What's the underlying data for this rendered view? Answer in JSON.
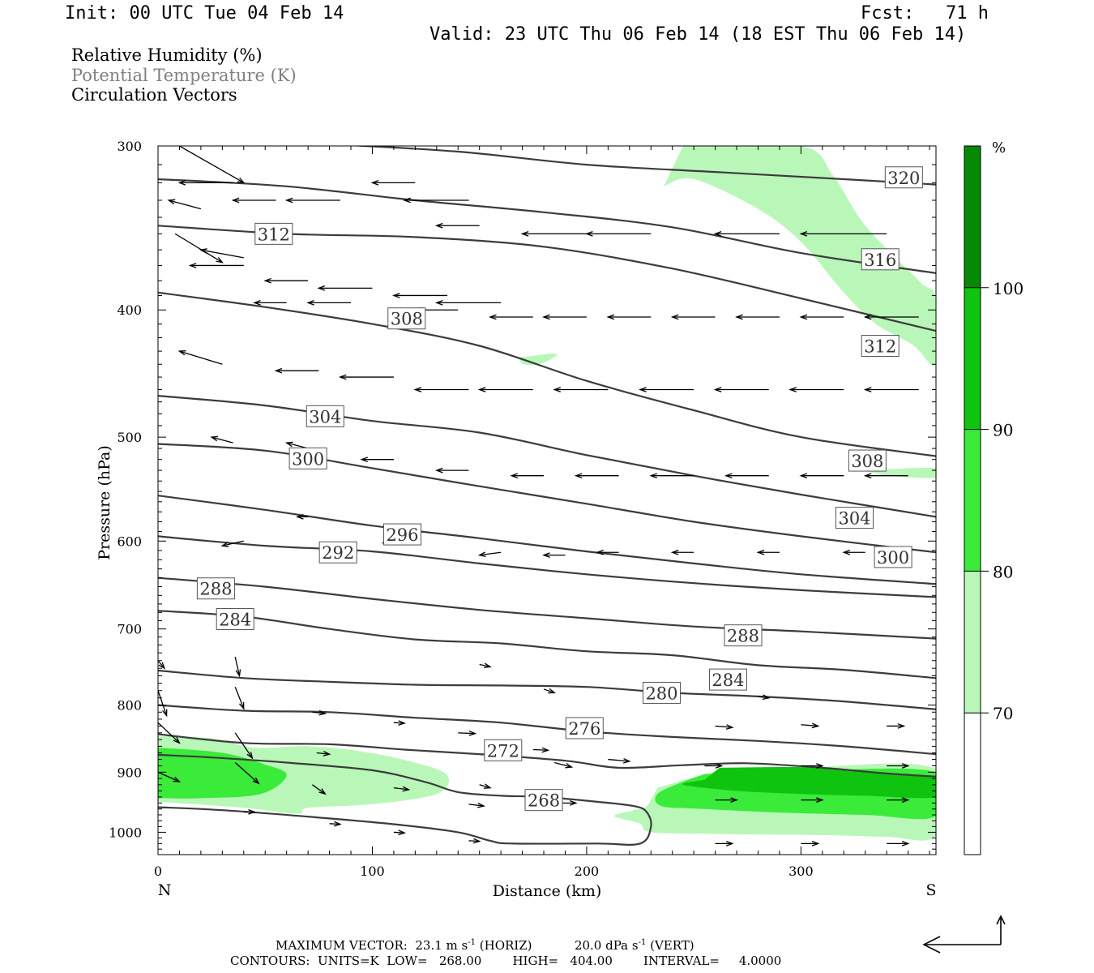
{
  "header": {
    "init": "Init: 00 UTC Tue 04 Feb 14",
    "fcst_label": "Fcst:",
    "fcst_value": "71 h",
    "valid": "Valid: 23 UTC Thu 06 Feb 14 (18 EST Thu 06 Feb 14)"
  },
  "fields": {
    "rh": "Relative Humidity (%)",
    "theta": "Potential Temperature (K)",
    "vectors": "Circulation Vectors"
  },
  "colors": {
    "rh70": "#b9f7b9",
    "rh80": "#3aeb3a",
    "rh90": "#0fc40f",
    "rh100": "#048a04",
    "contour": "#3c3c3c",
    "theta_text": "#808080"
  },
  "chart_data": {
    "type": "cross-section",
    "xlabel": "Distance (km)",
    "ylabel": "Pressure (hPa)",
    "xlim": [
      0,
      363
    ],
    "ylim": [
      1040,
      300
    ],
    "y_log": true,
    "x_ticks": [
      "0",
      "100",
      "200",
      "300"
    ],
    "y_ticks": [
      "300",
      "400",
      "500",
      "600",
      "700",
      "800",
      "900",
      "1000"
    ],
    "left_end": "N",
    "right_end": "S",
    "colorbar": {
      "unit": "%",
      "levels": [
        "70",
        "80",
        "90",
        "100"
      ],
      "colors": [
        "#ffffff",
        "#b9f7b9",
        "#3aeb3a",
        "#0fc40f",
        "#048a04"
      ]
    },
    "rh_regions": [
      {
        "level": 70,
        "points": [
          [
            0,
            845
          ],
          [
            25,
            848
          ],
          [
            45,
            862
          ],
          [
            70,
            860
          ],
          [
            95,
            868
          ],
          [
            120,
            885
          ],
          [
            135,
            905
          ],
          [
            130,
            935
          ],
          [
            100,
            952
          ],
          [
            70,
            958
          ],
          [
            65,
            968
          ],
          [
            40,
            958
          ],
          [
            0,
            948
          ]
        ]
      },
      {
        "level": 70,
        "points": [
          [
            245,
            300
          ],
          [
            300,
            300
          ],
          [
            315,
            316
          ],
          [
            330,
            345
          ],
          [
            355,
            380
          ],
          [
            363,
            392
          ],
          [
            363,
            440
          ],
          [
            352,
            425
          ],
          [
            335,
            410
          ],
          [
            320,
            388
          ],
          [
            300,
            355
          ],
          [
            280,
            335
          ],
          [
            250,
            318
          ],
          [
            236,
            322
          ]
        ]
      },
      {
        "level": 70,
        "points": [
          [
            258,
            900
          ],
          [
            300,
            893
          ],
          [
            363,
            895
          ],
          [
            363,
            1005
          ],
          [
            340,
            1008
          ],
          [
            310,
            1005
          ],
          [
            260,
            1003
          ],
          [
            230,
            1000
          ],
          [
            225,
            985
          ],
          [
            213,
            972
          ],
          [
            222,
            962
          ],
          [
            228,
            955
          ],
          [
            233,
            925
          ]
        ]
      },
      {
        "level": 70,
        "points": [
          [
            168,
            435
          ],
          [
            186,
            432
          ],
          [
            178,
            440
          ],
          [
            170,
            440
          ]
        ]
      },
      {
        "level": 70,
        "points": [
          [
            328,
            530
          ],
          [
            363,
            528
          ],
          [
            363,
            537
          ],
          [
            340,
            535
          ]
        ]
      },
      {
        "level": 80,
        "points": [
          [
            0,
            862
          ],
          [
            30,
            870
          ],
          [
            50,
            888
          ],
          [
            60,
            905
          ],
          [
            48,
            935
          ],
          [
            20,
            942
          ],
          [
            0,
            942
          ]
        ]
      },
      {
        "level": 80,
        "points": [
          [
            255,
            903
          ],
          [
            300,
            898
          ],
          [
            363,
            900
          ],
          [
            363,
            972
          ],
          [
            330,
            970
          ],
          [
            290,
            966
          ],
          [
            255,
            960
          ],
          [
            235,
            955
          ],
          [
            233,
            935
          ],
          [
            245,
            915
          ]
        ]
      },
      {
        "level": 90,
        "points": [
          [
            262,
            893
          ],
          [
            300,
            892
          ],
          [
            320,
            895
          ],
          [
            340,
            903
          ],
          [
            363,
            910
          ],
          [
            363,
            940
          ],
          [
            330,
            938
          ],
          [
            300,
            935
          ],
          [
            270,
            930
          ],
          [
            245,
            920
          ],
          [
            255,
            912
          ]
        ]
      },
      {
        "level": 100,
        "points": []
      }
    ],
    "theta_contours": [
      {
        "value": "268",
        "points": [
          [
            0,
            957
          ],
          [
            30,
            962
          ],
          [
            70,
            973
          ],
          [
            110,
            986
          ],
          [
            140,
            1000
          ],
          [
            155,
            1015
          ],
          [
            165,
            1020
          ],
          [
            205,
            1020
          ],
          [
            225,
            1020
          ],
          [
            230,
            990
          ],
          [
            228,
            965
          ],
          [
            222,
            955
          ],
          [
            205,
            948
          ],
          [
            180,
            940
          ],
          [
            160,
            938
          ],
          [
            140,
            932
          ],
          [
            125,
            916
          ],
          [
            100,
            897
          ],
          [
            60,
            885
          ],
          [
            25,
            877
          ],
          [
            0,
            873
          ]
        ],
        "label_at": [
          180,
          945
        ]
      },
      {
        "value": "272",
        "points": [
          [
            0,
            842
          ],
          [
            40,
            855
          ],
          [
            80,
            857
          ],
          [
            115,
            865
          ],
          [
            150,
            872
          ],
          [
            190,
            882
          ],
          [
            215,
            893
          ],
          [
            245,
            889
          ],
          [
            275,
            886
          ],
          [
            310,
            893
          ],
          [
            340,
            902
          ],
          [
            363,
            907
          ]
        ],
        "label_at": [
          161,
          866
        ]
      },
      {
        "value": "276",
        "points": [
          [
            0,
            800
          ],
          [
            40,
            808
          ],
          [
            80,
            810
          ],
          [
            120,
            818
          ],
          [
            160,
            825
          ],
          [
            200,
            838
          ],
          [
            240,
            846
          ],
          [
            280,
            852
          ],
          [
            320,
            860
          ],
          [
            363,
            872
          ]
        ],
        "label_at": [
          199,
          833
        ]
      },
      {
        "value": "280",
        "points": [
          [
            0,
            753
          ],
          [
            40,
            763
          ],
          [
            80,
            768
          ],
          [
            120,
            772
          ],
          [
            160,
            773
          ],
          [
            200,
            775
          ],
          [
            240,
            783
          ],
          [
            280,
            788
          ],
          [
            320,
            795
          ],
          [
            363,
            806
          ]
        ],
        "label_at": [
          235,
          783
        ]
      },
      {
        "value": "284",
        "points": [
          [
            0,
            678
          ],
          [
            40,
            685
          ],
          [
            80,
            700
          ],
          [
            120,
            713
          ],
          [
            160,
            718
          ],
          [
            200,
            728
          ],
          [
            240,
            733
          ],
          [
            280,
            746
          ],
          [
            320,
            752
          ],
          [
            363,
            763
          ]
        ],
        "label_at": [
          36,
          688
        ]
      },
      {
        "value": "288",
        "points": [
          [
            0,
            640
          ],
          [
            50,
            650
          ],
          [
            100,
            664
          ],
          [
            150,
            677
          ],
          [
            200,
            687
          ],
          [
            250,
            697
          ],
          [
            300,
            703
          ],
          [
            363,
            712
          ]
        ],
        "label_at": [
          27,
          652
        ]
      },
      {
        "value": "292",
        "points": [
          [
            0,
            595
          ],
          [
            50,
            605
          ],
          [
            100,
            611
          ],
          [
            150,
            624
          ],
          [
            200,
            636
          ],
          [
            250,
            646
          ],
          [
            300,
            654
          ],
          [
            363,
            662
          ]
        ],
        "label_at": [
          84,
          612
        ]
      },
      {
        "value": "296",
        "points": [
          [
            0,
            554
          ],
          [
            50,
            568
          ],
          [
            100,
            584
          ],
          [
            150,
            597
          ],
          [
            200,
            611
          ],
          [
            250,
            624
          ],
          [
            300,
            636
          ],
          [
            363,
            647
          ]
        ],
        "label_at": [
          114,
          593
        ]
      },
      {
        "value": "300",
        "points": [
          [
            0,
            506
          ],
          [
            50,
            512
          ],
          [
            100,
            528
          ],
          [
            150,
            545
          ],
          [
            200,
            562
          ],
          [
            250,
            580
          ],
          [
            300,
            595
          ],
          [
            363,
            612
          ]
        ],
        "label_at": [
          70,
          519
        ]
      },
      {
        "value": "304",
        "points": [
          [
            0,
            465
          ],
          [
            50,
            473
          ],
          [
            100,
            486
          ],
          [
            150,
            496
          ],
          [
            200,
            516
          ],
          [
            250,
            535
          ],
          [
            300,
            553
          ],
          [
            363,
            575
          ]
        ],
        "label_at": [
          78,
          482
        ]
      },
      {
        "value": "308",
        "points": [
          [
            0,
            388
          ],
          [
            50,
            398
          ],
          [
            100,
            410
          ],
          [
            150,
            426
          ],
          [
            200,
            453
          ],
          [
            250,
            477
          ],
          [
            300,
            500
          ],
          [
            363,
            517
          ]
        ],
        "label_at": [
          116,
          406
        ]
      },
      {
        "value": "312",
        "points": [
          [
            0,
            345
          ],
          [
            60,
            350
          ],
          [
            120,
            352
          ],
          [
            180,
            358
          ],
          [
            240,
            372
          ],
          [
            300,
            392
          ],
          [
            363,
            415
          ]
        ],
        "label_at": [
          54,
          350
        ]
      },
      {
        "value": "316",
        "points": [
          [
            0,
            318
          ],
          [
            60,
            322
          ],
          [
            120,
            330
          ],
          [
            180,
            337
          ],
          [
            240,
            346
          ],
          [
            300,
            362
          ],
          [
            363,
            375
          ]
        ],
        "label_at": [
          337,
          366
        ]
      },
      {
        "value": "320",
        "points": [
          [
            80,
            299
          ],
          [
            140,
            303
          ],
          [
            200,
            310
          ],
          [
            260,
            314
          ],
          [
            320,
            318
          ],
          [
            363,
            321
          ]
        ],
        "label_at": [
          348,
          317
        ]
      }
    ],
    "theta_labels_extra": [
      {
        "value": "312",
        "at": [
          337,
          426
        ]
      },
      {
        "value": "308",
        "at": [
          331,
          521
        ]
      },
      {
        "value": "304",
        "at": [
          325,
          576
        ]
      },
      {
        "value": "300",
        "at": [
          343,
          617
        ]
      },
      {
        "value": "288",
        "at": [
          273,
          708
        ]
      },
      {
        "value": "284",
        "at": [
          266,
          765
        ]
      }
    ],
    "max_vector_caption": "MAXIMUM VECTOR:  23.1 m s",
    "horiz_unit": "-1",
    "horiz_label": "(HORIZ)",
    "vert_value": "20.0 dPa s",
    "vert_unit": "-1",
    "vert_label": "(VERT)",
    "contours_caption": "CONTOURS:  UNITS=K  LOW=   268.00        HIGH=   404.00        INTERVAL=     4.0000"
  }
}
